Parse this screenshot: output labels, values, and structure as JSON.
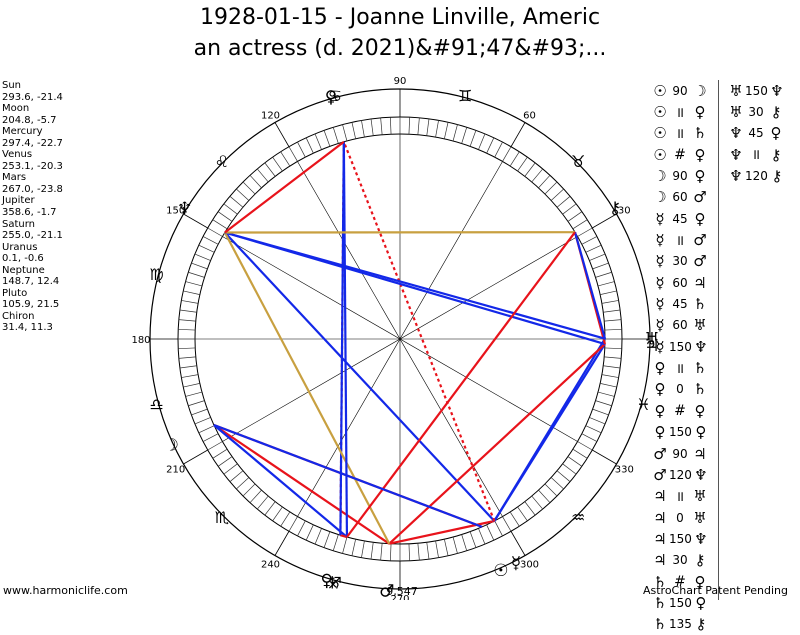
{
  "title": {
    "line1": "1928-01-15 - Joanne Linville, Americ",
    "line2": "an actress (d. 2021)&#91;47&#93;..."
  },
  "planet_positions": [
    {
      "name": "Sun",
      "coords": "293.6, -21.4"
    },
    {
      "name": "Moon",
      "coords": "204.8, -5.7"
    },
    {
      "name": "Mercury",
      "coords": "297.4, -22.7"
    },
    {
      "name": "Venus",
      "coords": "253.1, -20.3"
    },
    {
      "name": "Mars",
      "coords": "267.0, -23.8"
    },
    {
      "name": "Jupiter",
      "coords": "358.6, -1.7"
    },
    {
      "name": "Saturn",
      "coords": "255.0, -21.1"
    },
    {
      "name": "Uranus",
      "coords": "0.1, -0.6"
    },
    {
      "name": "Neptune",
      "coords": "148.7, 12.4"
    },
    {
      "name": "Pluto",
      "coords": "105.9, 21.5"
    },
    {
      "name": "Chiron",
      "coords": "31.4, 11.3"
    }
  ],
  "aspects_col1": [
    {
      "g1": "☉",
      "a": "90",
      "g2": "☽",
      "c1": "#000",
      "c2": "#000"
    },
    {
      "g1": "☉",
      "a": "॥",
      "g2": "♀",
      "c1": "#000",
      "c2": "#000"
    },
    {
      "g1": "☉",
      "a": "॥",
      "g2": "♄",
      "c1": "#000",
      "c2": "#000"
    },
    {
      "g1": "☉",
      "a": "#",
      "g2": "♀",
      "c1": "#000",
      "c2": "#000"
    },
    {
      "g1": "☽",
      "a": "90",
      "g2": "♀",
      "c1": "#000",
      "c2": "#000"
    },
    {
      "g1": "☽",
      "a": "60",
      "g2": "♂",
      "c1": "#000",
      "c2": "#000"
    },
    {
      "g1": "☿",
      "a": "45",
      "g2": "♀",
      "c1": "#000",
      "c2": "#000"
    },
    {
      "g1": "☿",
      "a": "॥",
      "g2": "♂",
      "c1": "#000",
      "c2": "#000"
    },
    {
      "g1": "☿",
      "a": "30",
      "g2": "♂",
      "c1": "#000",
      "c2": "#000"
    },
    {
      "g1": "☿",
      "a": "60",
      "g2": "♃",
      "c1": "#000",
      "c2": "#000"
    },
    {
      "g1": "☿",
      "a": "45",
      "g2": "♄",
      "c1": "#000",
      "c2": "#000"
    },
    {
      "g1": "☿",
      "a": "60",
      "g2": "♅",
      "c1": "#000",
      "c2": "#000"
    },
    {
      "g1": "☿",
      "a": "150",
      "g2": "♆",
      "c1": "#000",
      "c2": "#000"
    },
    {
      "g1": "♀",
      "a": "॥",
      "g2": "♄",
      "c1": "#000",
      "c2": "#000"
    },
    {
      "g1": "♀",
      "a": "0",
      "g2": "♄",
      "c1": "#000",
      "c2": "#000"
    },
    {
      "g1": "♀",
      "a": "#",
      "g2": "♀",
      "c1": "#000",
      "c2": "#000"
    },
    {
      "g1": "♀",
      "a": "150",
      "g2": "♀",
      "c1": "#000",
      "c2": "#000"
    },
    {
      "g1": "♂",
      "a": "90",
      "g2": "♃",
      "c1": "#000",
      "c2": "#000"
    },
    {
      "g1": "♂",
      "a": "120",
      "g2": "♆",
      "c1": "#000",
      "c2": "#000"
    },
    {
      "g1": "♃",
      "a": "॥",
      "g2": "♅",
      "c1": "#000",
      "c2": "#000"
    },
    {
      "g1": "♃",
      "a": "0",
      "g2": "♅",
      "c1": "#000",
      "c2": "#000"
    },
    {
      "g1": "♃",
      "a": "150",
      "g2": "♆",
      "c1": "#000",
      "c2": "#000"
    },
    {
      "g1": "♃",
      "a": "30",
      "g2": "⚷",
      "c1": "#000",
      "c2": "#000"
    },
    {
      "g1": "♄",
      "a": "#",
      "g2": "♀",
      "c1": "#000",
      "c2": "#000"
    },
    {
      "g1": "♄",
      "a": "150",
      "g2": "♀",
      "c1": "#000",
      "c2": "#000"
    },
    {
      "g1": "♄",
      "a": "135",
      "g2": "⚷",
      "c1": "#000",
      "c2": "#000"
    }
  ],
  "aspects_col2": [
    {
      "g1": "♅",
      "a": "150",
      "g2": "♆"
    },
    {
      "g1": "♅",
      "a": "30",
      "g2": "⚷"
    },
    {
      "g1": "♆",
      "a": "45",
      "g2": "♀"
    },
    {
      "g1": "♆",
      "a": "॥",
      "g2": "⚷"
    },
    {
      "g1": "♆",
      "a": "120",
      "g2": "⚷"
    }
  ],
  "wheel": {
    "degree_labels": [
      {
        "text": "90",
        "deg": 90
      },
      {
        "text": "120",
        "deg": 120
      },
      {
        "text": "60",
        "deg": 60
      },
      {
        "text": "150",
        "deg": 150
      },
      {
        "text": "30",
        "deg": 30
      },
      {
        "text": "180",
        "deg": 180
      },
      {
        "text": "210",
        "deg": 210
      },
      {
        "text": "330",
        "deg": 330
      },
      {
        "text": "240",
        "deg": 240
      },
      {
        "text": "300",
        "deg": 300
      },
      {
        "text": "270",
        "deg": 270
      }
    ],
    "zodiac_signs": [
      {
        "glyph": "♓",
        "deg": 345
      },
      {
        "glyph": "♒",
        "deg": 315
      },
      {
        "glyph": "♐",
        "deg": 255
      },
      {
        "glyph": "♏",
        "deg": 225
      },
      {
        "glyph": "♎",
        "deg": 195
      },
      {
        "glyph": "♍",
        "deg": 165
      },
      {
        "glyph": "♌",
        "deg": 135
      },
      {
        "glyph": "♋",
        "deg": 105
      },
      {
        "glyph": "♊",
        "deg": 75
      },
      {
        "glyph": "♉",
        "deg": 45
      }
    ],
    "planets": [
      {
        "name": "Sun",
        "glyph": "☉",
        "deg": 293.6
      },
      {
        "name": "Moon",
        "glyph": "☽",
        "deg": 204.8
      },
      {
        "name": "Mercury",
        "glyph": "☿",
        "deg": 297.4
      },
      {
        "name": "Venus",
        "glyph": "♀",
        "deg": 253.1
      },
      {
        "name": "Mars",
        "glyph": "♂",
        "deg": 267.0
      },
      {
        "name": "Jupiter",
        "glyph": "♃",
        "deg": 358.6
      },
      {
        "name": "Saturn",
        "glyph": "♄",
        "deg": 255.0
      },
      {
        "name": "Uranus",
        "glyph": "♅",
        "deg": 0.1
      },
      {
        "name": "Neptune",
        "glyph": "♆",
        "deg": 148.7
      },
      {
        "name": "Pluto",
        "glyph": "♀",
        "deg": 105.9
      },
      {
        "name": "Chiron",
        "glyph": "⚷",
        "deg": 31.4
      }
    ],
    "bottom_label": "9,547",
    "aspect_lines": [
      {
        "from": 293.6,
        "to": 204.8,
        "color": "#e8131b",
        "style": "solid"
      },
      {
        "from": 204.8,
        "to": 267.0,
        "color": "#e8131b",
        "style": "solid"
      },
      {
        "from": 204.8,
        "to": 255.0,
        "color": "#1328e8",
        "style": "solid"
      },
      {
        "from": 297.4,
        "to": 267.0,
        "color": "#e8131b",
        "style": "solid"
      },
      {
        "from": 297.4,
        "to": 358.6,
        "color": "#1328e8",
        "style": "solid"
      },
      {
        "from": 297.4,
        "to": 0.1,
        "color": "#1328e8",
        "style": "solid"
      },
      {
        "from": 297.4,
        "to": 148.7,
        "color": "#1328e8",
        "style": "solid"
      },
      {
        "from": 297.4,
        "to": 105.9,
        "color": "#e8131b",
        "style": "dotted"
      },
      {
        "from": 253.1,
        "to": 255.0,
        "color": "#e8131b",
        "style": "solid"
      },
      {
        "from": 253.1,
        "to": 105.9,
        "color": "#e8131b",
        "style": "dotted"
      },
      {
        "from": 253.1,
        "to": 105.9,
        "color": "#1328e8",
        "style": "solid"
      },
      {
        "from": 267.0,
        "to": 358.6,
        "color": "#e8131b",
        "style": "solid"
      },
      {
        "from": 267.0,
        "to": 148.7,
        "color": "#c8a040",
        "style": "solid"
      },
      {
        "from": 358.6,
        "to": 148.7,
        "color": "#1328e8",
        "style": "solid"
      },
      {
        "from": 358.6,
        "to": 31.4,
        "color": "#e8131b",
        "style": "solid"
      },
      {
        "from": 255.0,
        "to": 105.9,
        "color": "#1328e8",
        "style": "solid"
      },
      {
        "from": 0.1,
        "to": 148.7,
        "color": "#1328e8",
        "style": "solid"
      },
      {
        "from": 0.1,
        "to": 31.4,
        "color": "#1328e8",
        "style": "solid"
      },
      {
        "from": 148.7,
        "to": 31.4,
        "color": "#c8a040",
        "style": "solid"
      },
      {
        "from": 148.7,
        "to": 105.9,
        "color": "#e8131b",
        "style": "solid"
      },
      {
        "from": 255.0,
        "to": 31.4,
        "color": "#e8131b",
        "style": "solid"
      },
      {
        "from": 204.8,
        "to": 293.6,
        "color": "#1328e8",
        "style": "solid"
      }
    ]
  },
  "footer": {
    "left": "www.harmoniclife.com",
    "right": "AstroChart Patent Pending"
  }
}
